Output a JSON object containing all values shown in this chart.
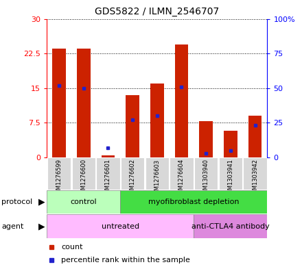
{
  "title": "GDS5822 / ILMN_2546707",
  "samples": [
    "GSM1276599",
    "GSM1276600",
    "GSM1276601",
    "GSM1276602",
    "GSM1276603",
    "GSM1276604",
    "GSM1303940",
    "GSM1303941",
    "GSM1303942"
  ],
  "counts": [
    23.5,
    23.6,
    0.5,
    13.5,
    16.0,
    24.5,
    7.8,
    5.8,
    9.0
  ],
  "percentile_ranks": [
    52,
    50,
    7,
    27,
    30,
    51,
    3,
    5,
    23
  ],
  "left_yticks": [
    0,
    7.5,
    15,
    22.5,
    30
  ],
  "left_yticklabels": [
    "0",
    "7.5",
    "15",
    "22.5",
    "30"
  ],
  "right_yticks": [
    0,
    25,
    50,
    75,
    100
  ],
  "right_yticklabels": [
    "0",
    "25",
    "50",
    "75",
    "100%"
  ],
  "bar_color": "#cc2200",
  "dot_color": "#2222cc",
  "ylim_left": [
    0,
    30
  ],
  "ylim_right": [
    0,
    100
  ],
  "protocol_groups": [
    {
      "label": "control",
      "start": 0,
      "end": 3,
      "color": "#bbffbb"
    },
    {
      "label": "myofibroblast depletion",
      "start": 3,
      "end": 9,
      "color": "#44dd44"
    }
  ],
  "agent_groups": [
    {
      "label": "untreated",
      "start": 0,
      "end": 6,
      "color": "#ffbbff"
    },
    {
      "label": "anti-CTLA4 antibody",
      "start": 6,
      "end": 9,
      "color": "#dd88dd"
    }
  ],
  "legend_count_label": "count",
  "legend_percentile_label": "percentile rank within the sample"
}
